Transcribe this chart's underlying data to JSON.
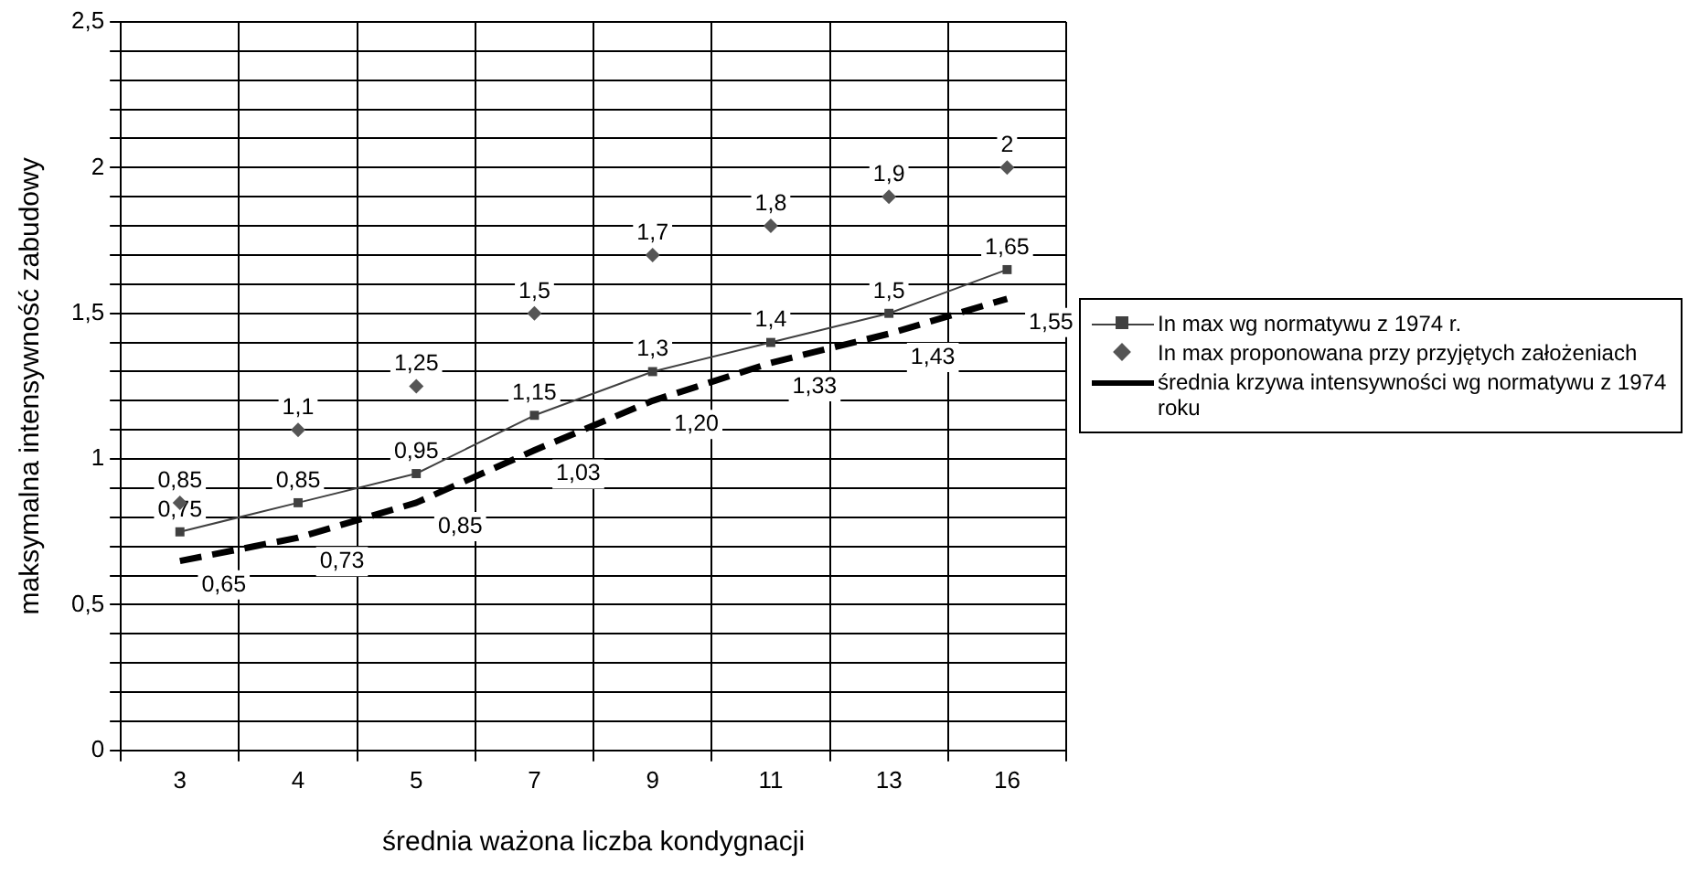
{
  "chart_data": {
    "type": "line",
    "xlabel": "średnia ważona liczba kondygnacji",
    "ylabel": "maksymalna intensywność zabudowy",
    "categories": [
      "3",
      "4",
      "5",
      "7",
      "9",
      "11",
      "13",
      "16"
    ],
    "series": [
      {
        "name": "In max wg normatywu z 1974 r.",
        "color": "#404040",
        "marker": "square",
        "values": [
          0.75,
          0.85,
          0.95,
          1.15,
          1.3,
          1.4,
          1.5,
          1.65
        ],
        "value_labels": [
          "0,75",
          "0,85",
          "0,95",
          "1,15",
          "1,3",
          "1,4",
          "1,5",
          "1,65"
        ]
      },
      {
        "name": "In max proponowana przy przyjętych założeniach",
        "type": "scatter",
        "color": "#555555",
        "marker": "diamond",
        "values": [
          0.85,
          1.1,
          1.25,
          1.5,
          1.7,
          1.8,
          1.9,
          2
        ],
        "value_labels": [
          "0,85",
          "1,1",
          "1,25",
          "1,5",
          "1,7",
          "1,8",
          "1,9",
          "2"
        ]
      },
      {
        "name": "średnia krzywa intensywności wg normatywu z 1974 roku",
        "color": "#000000",
        "marker": "none",
        "line_style": "dashed",
        "values": [
          0.65,
          0.73,
          0.85,
          1.03,
          1.2,
          1.33,
          1.43,
          1.55
        ],
        "value_labels": [
          "0,65",
          "0,73",
          "0,85",
          "1,03",
          "1,20",
          "1,33",
          "1,43",
          "1,55"
        ]
      }
    ],
    "ylim": [
      0,
      2.5
    ],
    "yticks": [
      0,
      {
        "value": 0.1,
        "label": null
      },
      {
        "value": 0.2,
        "label": null
      },
      {
        "value": 0.3,
        "label": null
      },
      {
        "value": 0.4,
        "label": null
      },
      {
        "value": 0.5,
        "label": "0,5"
      },
      {
        "value": 0.6,
        "label": null
      },
      {
        "value": 0.7,
        "label": null
      },
      {
        "value": 0.8,
        "label": null
      },
      {
        "value": 0.9,
        "label": null
      },
      1,
      {
        "value": 1.1,
        "label": null
      },
      {
        "value": 1.2,
        "label": null
      },
      {
        "value": 1.3,
        "label": null
      },
      {
        "value": 1.4,
        "label": null
      },
      {
        "value": 1.5,
        "label": "1,5"
      },
      {
        "value": 1.6,
        "label": null
      },
      {
        "value": 1.7,
        "label": null
      },
      {
        "value": 1.8,
        "label": null
      },
      {
        "value": 1.9,
        "label": null
      },
      2,
      {
        "value": 2.1,
        "label": null
      },
      {
        "value": 2.2,
        "label": null
      },
      {
        "value": 2.3,
        "label": null
      },
      {
        "value": 2.4,
        "label": null
      },
      {
        "value": 2.5,
        "label": "2,5"
      }
    ],
    "grid": true,
    "legend": "right"
  }
}
